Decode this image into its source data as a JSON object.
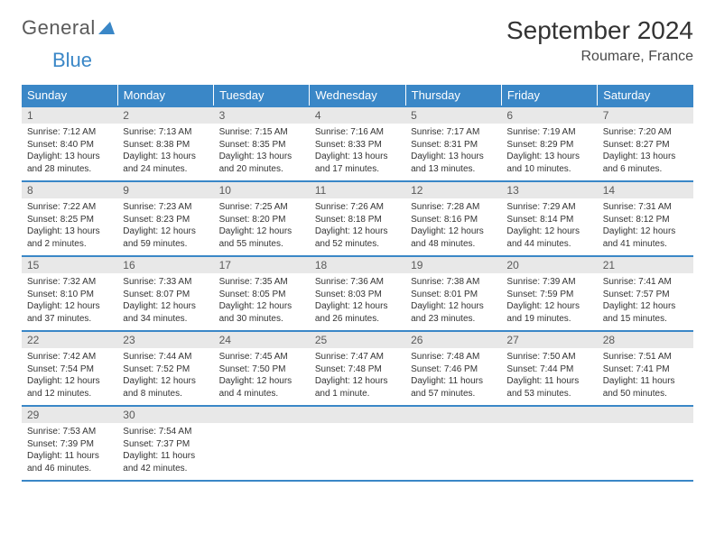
{
  "logo": {
    "text1": "General",
    "text2": "Blue"
  },
  "title": "September 2024",
  "location": "Roumare, France",
  "colors": {
    "accent": "#3a87c7",
    "daynum_bg": "#e8e8e8",
    "text": "#333333"
  },
  "weekdays": [
    "Sunday",
    "Monday",
    "Tuesday",
    "Wednesday",
    "Thursday",
    "Friday",
    "Saturday"
  ],
  "weeks": [
    [
      {
        "n": "1",
        "sr": "Sunrise: 7:12 AM",
        "ss": "Sunset: 8:40 PM",
        "d1": "Daylight: 13 hours",
        "d2": "and 28 minutes."
      },
      {
        "n": "2",
        "sr": "Sunrise: 7:13 AM",
        "ss": "Sunset: 8:38 PM",
        "d1": "Daylight: 13 hours",
        "d2": "and 24 minutes."
      },
      {
        "n": "3",
        "sr": "Sunrise: 7:15 AM",
        "ss": "Sunset: 8:35 PM",
        "d1": "Daylight: 13 hours",
        "d2": "and 20 minutes."
      },
      {
        "n": "4",
        "sr": "Sunrise: 7:16 AM",
        "ss": "Sunset: 8:33 PM",
        "d1": "Daylight: 13 hours",
        "d2": "and 17 minutes."
      },
      {
        "n": "5",
        "sr": "Sunrise: 7:17 AM",
        "ss": "Sunset: 8:31 PM",
        "d1": "Daylight: 13 hours",
        "d2": "and 13 minutes."
      },
      {
        "n": "6",
        "sr": "Sunrise: 7:19 AM",
        "ss": "Sunset: 8:29 PM",
        "d1": "Daylight: 13 hours",
        "d2": "and 10 minutes."
      },
      {
        "n": "7",
        "sr": "Sunrise: 7:20 AM",
        "ss": "Sunset: 8:27 PM",
        "d1": "Daylight: 13 hours",
        "d2": "and 6 minutes."
      }
    ],
    [
      {
        "n": "8",
        "sr": "Sunrise: 7:22 AM",
        "ss": "Sunset: 8:25 PM",
        "d1": "Daylight: 13 hours",
        "d2": "and 2 minutes."
      },
      {
        "n": "9",
        "sr": "Sunrise: 7:23 AM",
        "ss": "Sunset: 8:23 PM",
        "d1": "Daylight: 12 hours",
        "d2": "and 59 minutes."
      },
      {
        "n": "10",
        "sr": "Sunrise: 7:25 AM",
        "ss": "Sunset: 8:20 PM",
        "d1": "Daylight: 12 hours",
        "d2": "and 55 minutes."
      },
      {
        "n": "11",
        "sr": "Sunrise: 7:26 AM",
        "ss": "Sunset: 8:18 PM",
        "d1": "Daylight: 12 hours",
        "d2": "and 52 minutes."
      },
      {
        "n": "12",
        "sr": "Sunrise: 7:28 AM",
        "ss": "Sunset: 8:16 PM",
        "d1": "Daylight: 12 hours",
        "d2": "and 48 minutes."
      },
      {
        "n": "13",
        "sr": "Sunrise: 7:29 AM",
        "ss": "Sunset: 8:14 PM",
        "d1": "Daylight: 12 hours",
        "d2": "and 44 minutes."
      },
      {
        "n": "14",
        "sr": "Sunrise: 7:31 AM",
        "ss": "Sunset: 8:12 PM",
        "d1": "Daylight: 12 hours",
        "d2": "and 41 minutes."
      }
    ],
    [
      {
        "n": "15",
        "sr": "Sunrise: 7:32 AM",
        "ss": "Sunset: 8:10 PM",
        "d1": "Daylight: 12 hours",
        "d2": "and 37 minutes."
      },
      {
        "n": "16",
        "sr": "Sunrise: 7:33 AM",
        "ss": "Sunset: 8:07 PM",
        "d1": "Daylight: 12 hours",
        "d2": "and 34 minutes."
      },
      {
        "n": "17",
        "sr": "Sunrise: 7:35 AM",
        "ss": "Sunset: 8:05 PM",
        "d1": "Daylight: 12 hours",
        "d2": "and 30 minutes."
      },
      {
        "n": "18",
        "sr": "Sunrise: 7:36 AM",
        "ss": "Sunset: 8:03 PM",
        "d1": "Daylight: 12 hours",
        "d2": "and 26 minutes."
      },
      {
        "n": "19",
        "sr": "Sunrise: 7:38 AM",
        "ss": "Sunset: 8:01 PM",
        "d1": "Daylight: 12 hours",
        "d2": "and 23 minutes."
      },
      {
        "n": "20",
        "sr": "Sunrise: 7:39 AM",
        "ss": "Sunset: 7:59 PM",
        "d1": "Daylight: 12 hours",
        "d2": "and 19 minutes."
      },
      {
        "n": "21",
        "sr": "Sunrise: 7:41 AM",
        "ss": "Sunset: 7:57 PM",
        "d1": "Daylight: 12 hours",
        "d2": "and 15 minutes."
      }
    ],
    [
      {
        "n": "22",
        "sr": "Sunrise: 7:42 AM",
        "ss": "Sunset: 7:54 PM",
        "d1": "Daylight: 12 hours",
        "d2": "and 12 minutes."
      },
      {
        "n": "23",
        "sr": "Sunrise: 7:44 AM",
        "ss": "Sunset: 7:52 PM",
        "d1": "Daylight: 12 hours",
        "d2": "and 8 minutes."
      },
      {
        "n": "24",
        "sr": "Sunrise: 7:45 AM",
        "ss": "Sunset: 7:50 PM",
        "d1": "Daylight: 12 hours",
        "d2": "and 4 minutes."
      },
      {
        "n": "25",
        "sr": "Sunrise: 7:47 AM",
        "ss": "Sunset: 7:48 PM",
        "d1": "Daylight: 12 hours",
        "d2": "and 1 minute."
      },
      {
        "n": "26",
        "sr": "Sunrise: 7:48 AM",
        "ss": "Sunset: 7:46 PM",
        "d1": "Daylight: 11 hours",
        "d2": "and 57 minutes."
      },
      {
        "n": "27",
        "sr": "Sunrise: 7:50 AM",
        "ss": "Sunset: 7:44 PM",
        "d1": "Daylight: 11 hours",
        "d2": "and 53 minutes."
      },
      {
        "n": "28",
        "sr": "Sunrise: 7:51 AM",
        "ss": "Sunset: 7:41 PM",
        "d1": "Daylight: 11 hours",
        "d2": "and 50 minutes."
      }
    ],
    [
      {
        "n": "29",
        "sr": "Sunrise: 7:53 AM",
        "ss": "Sunset: 7:39 PM",
        "d1": "Daylight: 11 hours",
        "d2": "and 46 minutes."
      },
      {
        "n": "30",
        "sr": "Sunrise: 7:54 AM",
        "ss": "Sunset: 7:37 PM",
        "d1": "Daylight: 11 hours",
        "d2": "and 42 minutes."
      },
      {
        "empty": true
      },
      {
        "empty": true
      },
      {
        "empty": true
      },
      {
        "empty": true
      },
      {
        "empty": true
      }
    ]
  ]
}
